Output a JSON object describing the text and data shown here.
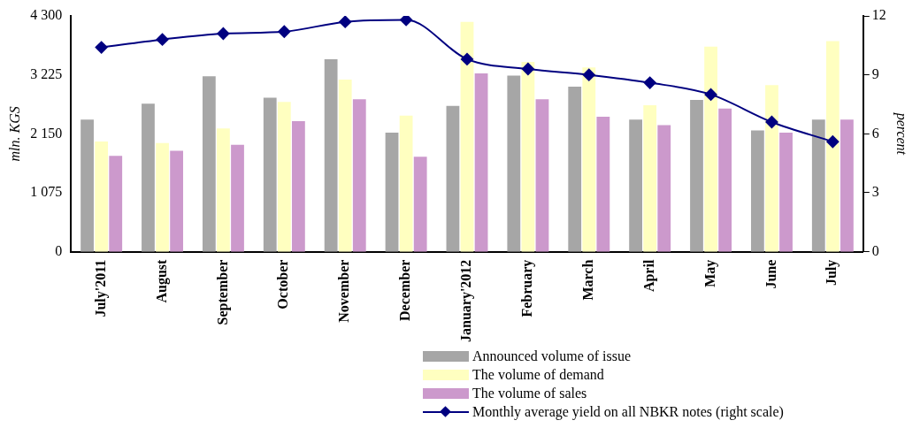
{
  "chart_data": {
    "type": "bar",
    "ylabel": "mln. KGS",
    "y2label": "percent",
    "categories": [
      "July'2011",
      "August",
      "September",
      "October",
      "November",
      "December",
      "January'2012",
      "February",
      "March",
      "April",
      "May",
      "June",
      "July"
    ],
    "series": [
      {
        "name": "Announced volume of issue",
        "color": "#a6a6a6",
        "values": [
          2410,
          2700,
          3200,
          2810,
          3510,
          2170,
          2660,
          3210,
          3010,
          2410,
          2770,
          2210,
          2410
        ]
      },
      {
        "name": "The volume of demand",
        "color": "#ffffc0",
        "values": [
          2010,
          1980,
          2250,
          2730,
          3140,
          2480,
          4190,
          3460,
          3360,
          2670,
          3740,
          3040,
          3840
        ]
      },
      {
        "name": "The volume of sales",
        "color": "#cc99cc",
        "values": [
          1750,
          1840,
          1950,
          2380,
          2780,
          1730,
          3250,
          2780,
          2460,
          2310,
          2610,
          2170,
          2410
        ]
      },
      {
        "name": "Monthly average yield on all NBKR notes (right scale)",
        "type": "line",
        "axis": "y2",
        "color": "#000080",
        "marker": "diamond",
        "values": [
          10.4,
          10.8,
          11.1,
          11.2,
          11.7,
          11.8,
          9.8,
          9.3,
          9.0,
          8.6,
          8.0,
          6.6,
          5.6
        ]
      }
    ],
    "ylim": [
      0,
      4300
    ],
    "yticks": [
      0,
      {
        "value": 1075,
        "label": "1 075"
      },
      {
        "value": 2150,
        "label": "2 150"
      },
      {
        "value": 3225,
        "label": "3 225"
      },
      {
        "value": 4300,
        "label": "4 300"
      }
    ],
    "y2lim": [
      0,
      12
    ],
    "y2ticks": [
      0,
      3,
      6,
      9,
      12
    ],
    "grid": false,
    "legend": "bottom"
  }
}
